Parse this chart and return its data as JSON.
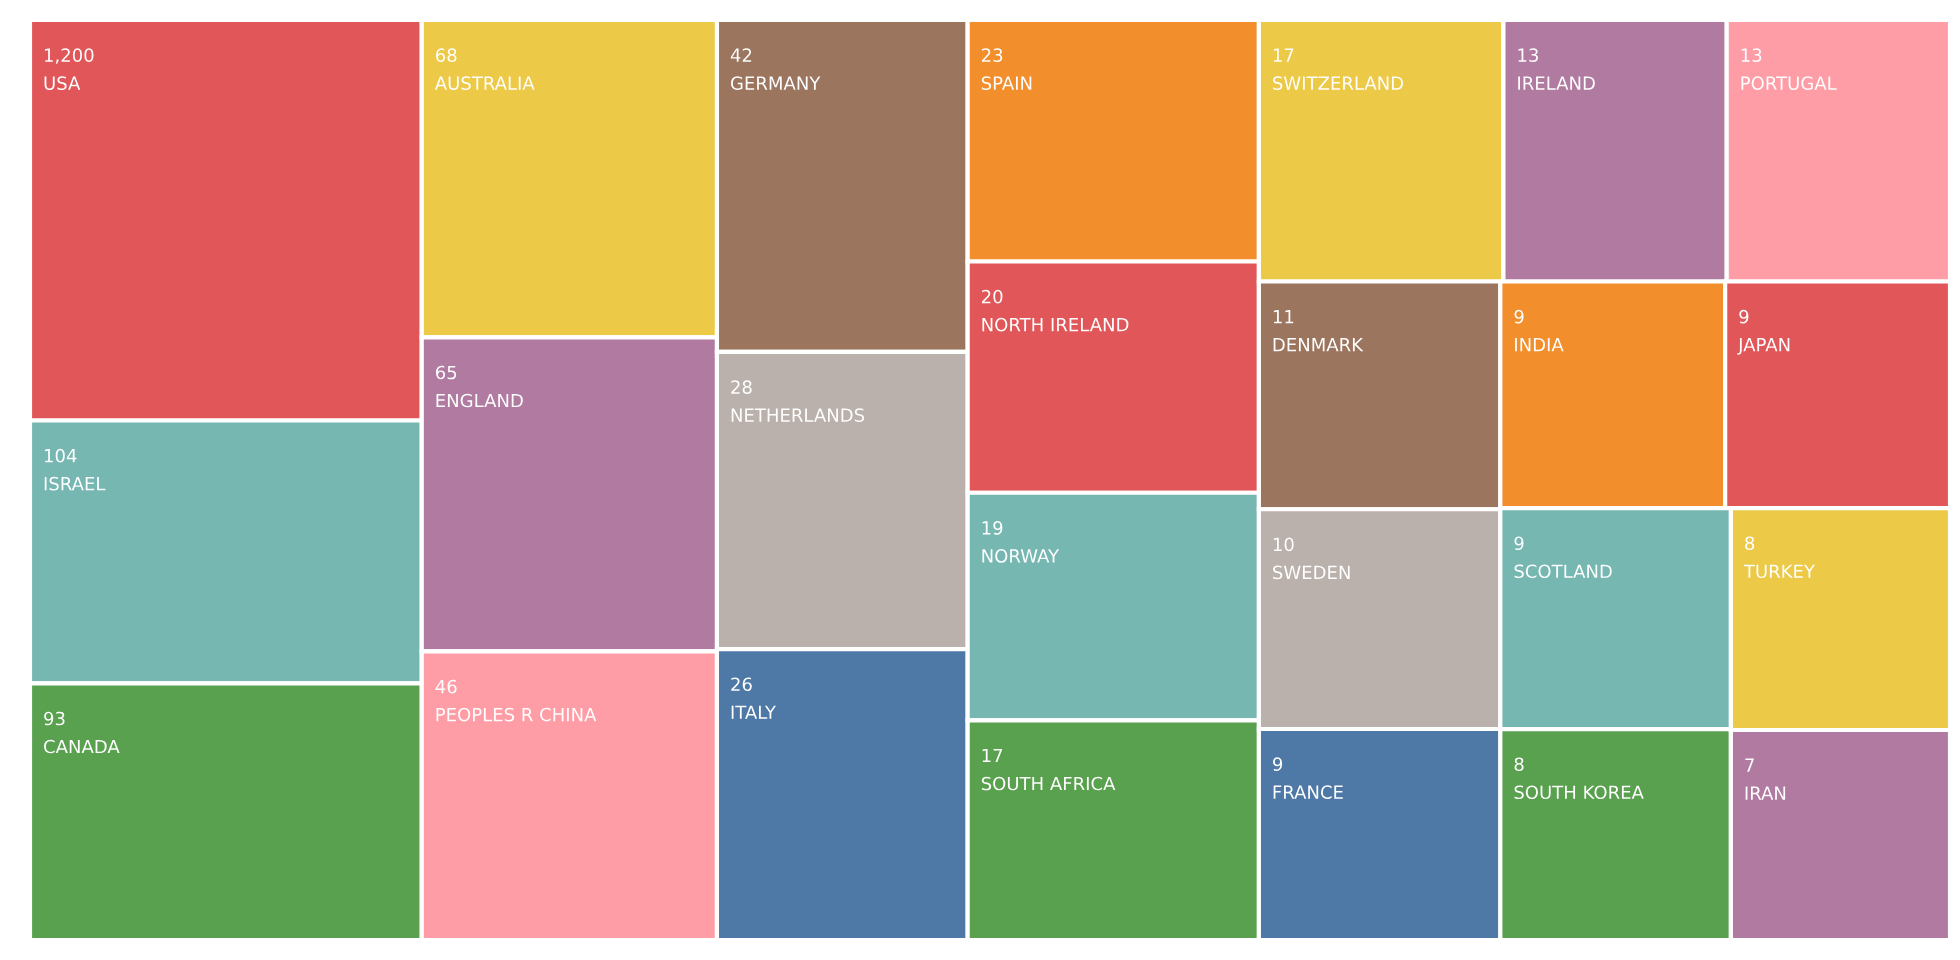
{
  "chart_data": {
    "type": "other",
    "categories": [
      "USA",
      "ISRAEL",
      "CANADA",
      "AUSTRALIA",
      "ENGLAND",
      "PEOPLES R CHINA",
      "GERMANY",
      "NETHERLANDS",
      "ITALY",
      "SPAIN",
      "NORTH IRELAND",
      "NORWAY",
      "SOUTH AFRICA",
      "SWITZERLAND",
      "IRELAND",
      "PORTUGAL",
      "DENMARK",
      "SWEDEN",
      "FRANCE",
      "INDIA",
      "JAPAN",
      "SCOTLAND",
      "SOUTH KOREA",
      "TURKEY",
      "IRAN"
    ],
    "values": [
      1200,
      104,
      93,
      68,
      65,
      46,
      42,
      28,
      26,
      23,
      20,
      19,
      17,
      17,
      13,
      13,
      11,
      10,
      9,
      9,
      9,
      9,
      8,
      8,
      7
    ],
    "value_labels": [
      "1,200",
      "104",
      "93",
      "68",
      "65",
      "46",
      "42",
      "28",
      "26",
      "23",
      "20",
      "19",
      "17",
      "17",
      "13",
      "13",
      "11",
      "10",
      "9",
      "9",
      "9",
      "9",
      "8",
      "8",
      "7"
    ],
    "colors": [
      "#e15759",
      "#76b7b2",
      "#59a14f",
      "#edc948",
      "#b07aa1",
      "#ff9da7",
      "#9c755f",
      "#bab0ac",
      "#4e79a7",
      "#f28e2b",
      "#e15759",
      "#76b7b2",
      "#59a14f",
      "#edc948",
      "#b07aa1",
      "#ff9da7",
      "#9c755f",
      "#bab0ac",
      "#4e79a7",
      "#f28e2b",
      "#e15759",
      "#76b7b2",
      "#59a14f",
      "#edc948",
      "#b07aa1"
    ]
  }
}
